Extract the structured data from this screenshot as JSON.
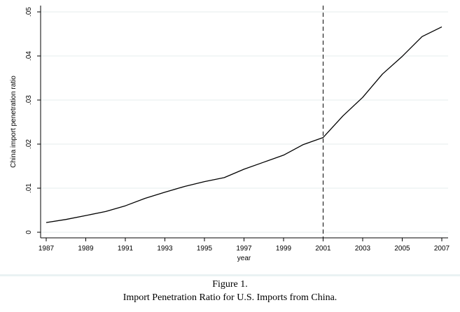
{
  "chart_data": {
    "type": "line",
    "xlabel": "year",
    "ylabel": "China import penetration ratio",
    "xlim": [
      1987,
      2007
    ],
    "ylim": [
      0,
      0.05
    ],
    "x_ticks": [
      1987,
      1989,
      1991,
      1993,
      1995,
      1997,
      1999,
      2001,
      2003,
      2005,
      2007
    ],
    "y_ticks": [
      0,
      0.01,
      0.02,
      0.03,
      0.04,
      0.05
    ],
    "y_tick_labels": [
      "0",
      ".01",
      ".02",
      ".03",
      ".04",
      ".05"
    ],
    "grid": "horizontal",
    "vertical_reference_line": {
      "x": 2001,
      "style": "dashed"
    },
    "series": [
      {
        "name": "China import penetration ratio",
        "x": [
          1987,
          1988,
          1989,
          1990,
          1991,
          1992,
          1993,
          1994,
          1995,
          1996,
          1997,
          1998,
          1999,
          2000,
          2001,
          2002,
          2003,
          2004,
          2005,
          2006,
          2007
        ],
        "values": [
          0.0022,
          0.0029,
          0.0038,
          0.0047,
          0.006,
          0.0077,
          0.0091,
          0.0104,
          0.0115,
          0.0124,
          0.0143,
          0.0159,
          0.0175,
          0.0199,
          0.0215,
          0.0264,
          0.0306,
          0.0359,
          0.0399,
          0.0444,
          0.0466
        ]
      }
    ]
  },
  "caption": {
    "figure_label": "Figure 1.",
    "title": "Import Penetration Ratio for U.S. Imports from China."
  }
}
